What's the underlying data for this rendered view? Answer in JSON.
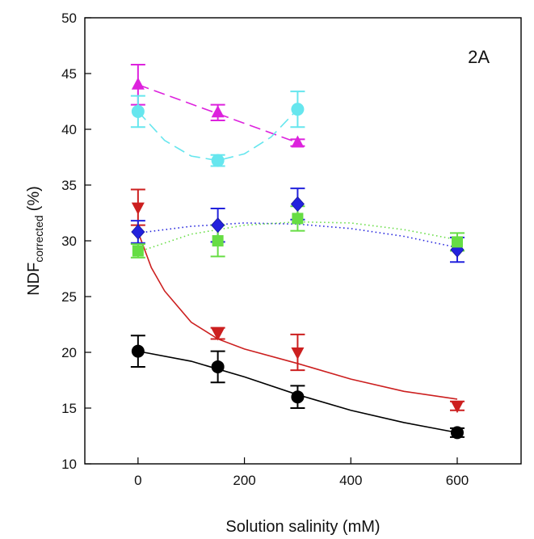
{
  "chart_data": {
    "type": "scatter",
    "panel_label": "2A",
    "xlabel": "Solution salinity (mM)",
    "ylabel_main": "NDF",
    "ylabel_sub": "corrected",
    "ylabel_unit": "(%)",
    "xlim": [
      -100,
      720
    ],
    "ylim": [
      10,
      50
    ],
    "xticks": [
      0,
      200,
      400,
      600
    ],
    "yticks": [
      10,
      15,
      20,
      25,
      30,
      35,
      40,
      45,
      50
    ],
    "grid": false,
    "legend": "none",
    "series": [
      {
        "color": "#000000",
        "marker": "circle",
        "line_style": "solid",
        "x": [
          0,
          150,
          300,
          600
        ],
        "y": [
          20.1,
          18.7,
          16.0,
          12.8
        ],
        "err": [
          1.4,
          1.4,
          1.0,
          0.4
        ],
        "fit_x": [
          0,
          100,
          200,
          300,
          400,
          500,
          600
        ],
        "fit_y": [
          20.1,
          19.2,
          17.8,
          16.2,
          14.8,
          13.7,
          12.8
        ]
      },
      {
        "color": "#cc1f1f",
        "marker": "triangle-down",
        "line_style": "solid",
        "x": [
          0,
          150,
          300,
          600
        ],
        "y": [
          33.0,
          21.7,
          20.0,
          15.2
        ],
        "err": [
          1.6,
          0.5,
          1.6,
          0.4
        ],
        "fit_x": [
          0,
          25,
          50,
          100,
          150,
          200,
          300,
          400,
          500,
          600
        ],
        "fit_y": [
          30.8,
          27.6,
          25.5,
          22.7,
          21.2,
          20.3,
          19.0,
          17.6,
          16.5,
          15.8
        ]
      },
      {
        "color": "#2222dd",
        "marker": "diamond",
        "line_style": "dotted",
        "x": [
          0,
          150,
          300,
          600
        ],
        "y": [
          30.8,
          31.4,
          33.3,
          29.2
        ],
        "err": [
          1.0,
          1.5,
          1.4,
          1.1
        ],
        "fit_x": [
          0,
          100,
          200,
          300,
          400,
          500,
          600
        ],
        "fit_y": [
          30.7,
          31.3,
          31.6,
          31.5,
          31.1,
          30.4,
          29.4
        ]
      },
      {
        "color": "#66dd44",
        "marker": "square",
        "line_style": "dotted",
        "x": [
          0,
          150,
          300,
          600
        ],
        "y": [
          29.1,
          30.0,
          32.0,
          29.9
        ],
        "err": [
          0.6,
          1.4,
          1.1,
          0.8
        ],
        "fit_x": [
          0,
          100,
          200,
          300,
          400,
          500,
          600
        ],
        "fit_y": [
          29.0,
          30.6,
          31.4,
          31.7,
          31.6,
          31.0,
          30.1
        ]
      },
      {
        "color": "#dd22dd",
        "marker": "triangle-up",
        "line_style": "dashed",
        "x": [
          0,
          150,
          300
        ],
        "y": [
          44.0,
          41.5,
          38.8
        ],
        "err": [
          1.8,
          0.7,
          0.3
        ],
        "fit_x": [
          0,
          300
        ],
        "fit_y": [
          44.0,
          38.8
        ]
      },
      {
        "color": "#66e6ee",
        "marker": "circle",
        "line_style": "dashed",
        "x": [
          0,
          150,
          300
        ],
        "y": [
          41.6,
          37.2,
          41.8
        ],
        "err": [
          1.4,
          0.5,
          1.6
        ],
        "fit_x": [
          0,
          50,
          100,
          150,
          200,
          250,
          300
        ],
        "fit_y": [
          41.6,
          39.0,
          37.6,
          37.2,
          37.8,
          39.3,
          41.8
        ]
      }
    ]
  }
}
